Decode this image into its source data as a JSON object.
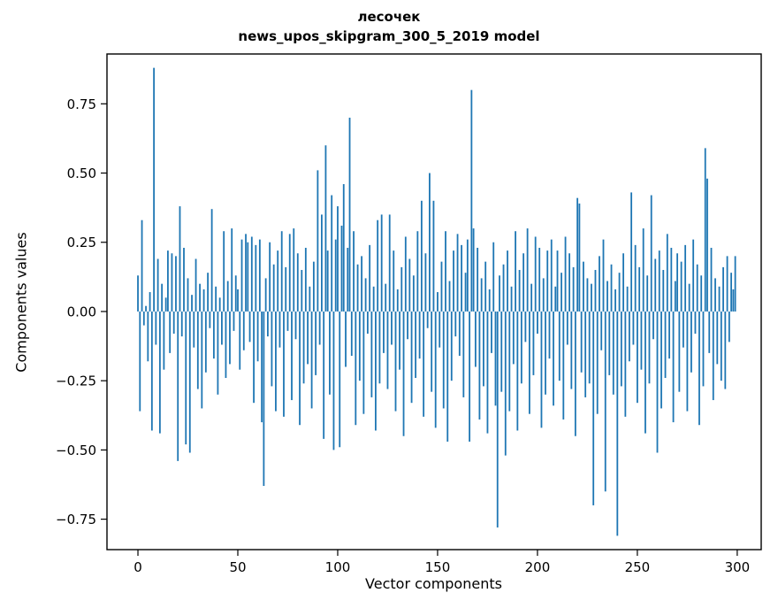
{
  "chart_data": {
    "type": "bar",
    "title_line1": "лесочек",
    "title_line2": "news_upos_skipgram_300_5_2019 model",
    "xlabel": "Vector components",
    "ylabel": "Components values",
    "bar_color": "#1f77b4",
    "axis_color": "#000000",
    "xlim": [
      -15.5,
      312
    ],
    "ylim": [
      -0.86,
      0.93
    ],
    "xticks": [
      0,
      50,
      100,
      150,
      200,
      250,
      300
    ],
    "xtick_labels": [
      "0",
      "50",
      "100",
      "150",
      "200",
      "250",
      "300"
    ],
    "yticks": [
      -0.75,
      -0.5,
      -0.25,
      0,
      0.25,
      0.5,
      0.75
    ],
    "ytick_labels": [
      "−0.75",
      "−0.50",
      "−0.25",
      "0.00",
      "0.25",
      "0.50",
      "0.75"
    ],
    "x_start": 0,
    "bar_width": 0.8,
    "values": [
      0.13,
      -0.36,
      0.33,
      -0.05,
      0.02,
      -0.18,
      0.07,
      -0.43,
      0.88,
      -0.12,
      0.19,
      -0.44,
      0.1,
      -0.21,
      0.05,
      0.22,
      -0.15,
      0.21,
      -0.08,
      0.2,
      -0.54,
      0.38,
      -0.09,
      0.23,
      -0.48,
      0.12,
      -0.51,
      0.06,
      -0.13,
      0.19,
      -0.28,
      0.1,
      -0.35,
      0.08,
      -0.22,
      0.14,
      -0.06,
      0.37,
      -0.17,
      0.09,
      -0.3,
      0.05,
      -0.12,
      0.29,
      -0.24,
      0.11,
      -0.19,
      0.3,
      -0.07,
      0.13,
      0.08,
      -0.21,
      0.26,
      -0.14,
      0.28,
      0.25,
      -0.11,
      0.27,
      -0.33,
      0.24,
      -0.18,
      0.26,
      -0.4,
      -0.63,
      0.12,
      -0.09,
      0.25,
      -0.27,
      0.17,
      -0.36,
      0.22,
      -0.13,
      0.29,
      -0.38,
      0.16,
      -0.07,
      0.28,
      -0.32,
      0.3,
      -0.1,
      0.21,
      -0.41,
      0.15,
      -0.26,
      0.23,
      -0.19,
      0.09,
      -0.35,
      0.18,
      -0.23,
      0.51,
      -0.12,
      0.35,
      -0.46,
      0.6,
      0.22,
      -0.3,
      0.42,
      -0.5,
      0.26,
      0.38,
      -0.49,
      0.31,
      0.46,
      -0.2,
      0.23,
      0.7,
      -0.16,
      0.29,
      -0.41,
      0.17,
      -0.25,
      0.2,
      -0.37,
      0.12,
      -0.08,
      0.24,
      -0.31,
      0.09,
      -0.43,
      0.33,
      -0.26,
      0.35,
      -0.15,
      0.1,
      -0.28,
      0.35,
      -0.12,
      0.22,
      -0.36,
      0.08,
      -0.21,
      0.16,
      -0.45,
      0.27,
      -0.1,
      0.19,
      -0.33,
      0.13,
      -0.24,
      0.29,
      -0.17,
      0.4,
      -0.38,
      0.21,
      -0.06,
      0.5,
      -0.29,
      0.4,
      -0.42,
      0.07,
      -0.13,
      0.18,
      -0.35,
      0.29,
      -0.47,
      0.11,
      -0.25,
      0.22,
      -0.09,
      0.28,
      -0.16,
      0.24,
      -0.31,
      0.14,
      0.26,
      -0.47,
      0.8,
      0.3,
      -0.2,
      0.23,
      -0.39,
      0.12,
      -0.27,
      0.18,
      -0.44,
      0.08,
      -0.15,
      0.25,
      -0.34,
      -0.78,
      0.13,
      -0.29,
      0.17,
      -0.52,
      0.22,
      -0.36,
      0.09,
      -0.19,
      0.29,
      -0.43,
      0.15,
      -0.26,
      0.21,
      -0.11,
      0.3,
      -0.37,
      0.1,
      -0.23,
      0.27,
      -0.08,
      0.23,
      -0.42,
      0.12,
      -0.3,
      0.22,
      -0.17,
      0.26,
      -0.34,
      0.09,
      0.22,
      -0.25,
      0.14,
      -0.39,
      0.27,
      -0.12,
      0.21,
      -0.28,
      0.16,
      -0.45,
      0.41,
      0.39,
      -0.22,
      0.18,
      -0.31,
      0.12,
      -0.26,
      0.1,
      -0.7,
      0.15,
      -0.37,
      0.2,
      -0.14,
      0.26,
      -0.65,
      0.11,
      -0.23,
      0.17,
      -0.3,
      0.08,
      -0.81,
      0.14,
      -0.27,
      0.21,
      -0.38,
      0.09,
      -0.18,
      0.43,
      -0.12,
      0.24,
      -0.33,
      0.16,
      -0.21,
      0.3,
      -0.44,
      0.13,
      -0.26,
      0.42,
      -0.1,
      0.19,
      -0.51,
      0.22,
      -0.35,
      0.15,
      -0.24,
      0.28,
      -0.17,
      0.23,
      -0.4,
      0.11,
      0.21,
      -0.29,
      0.18,
      -0.13,
      0.24,
      -0.36,
      0.1,
      -0.22,
      0.26,
      -0.08,
      0.17,
      -0.41,
      0.13,
      -0.27,
      0.59,
      0.48,
      -0.15,
      0.23,
      -0.32,
      0.12,
      -0.19,
      0.09,
      -0.25,
      0.16,
      -0.28,
      0.2,
      -0.11,
      0.14,
      0.08,
      0.2
    ]
  }
}
